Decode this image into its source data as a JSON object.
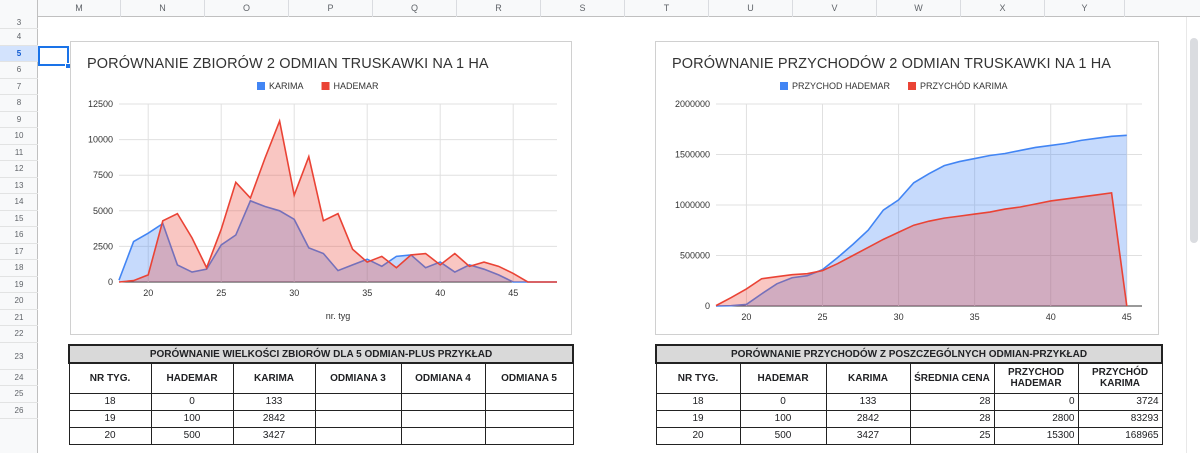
{
  "columns": [
    "M",
    "N",
    "O",
    "P",
    "Q",
    "R",
    "S",
    "T",
    "U",
    "V",
    "W",
    "X",
    "Y"
  ],
  "rows": [
    "3",
    "4",
    "5",
    "6",
    "7",
    "8",
    "9",
    "10",
    "11",
    "12",
    "13",
    "14",
    "15",
    "16",
    "17",
    "18",
    "19",
    "20",
    "21",
    "22",
    "23",
    "24",
    "25",
    "26"
  ],
  "selected_row": "5",
  "colors": {
    "karima": "#4285f4",
    "hademar": "#ea4335",
    "hademar_fill": "#f5b3ad",
    "karima_fill": "#aac5f7",
    "overlap": "#c9a0b7"
  },
  "chart_data": [
    {
      "type": "area",
      "title": "PORÓWNANIE ZBIORÓW 2 ODMIAN TRUSKAWKI NA 1 HA",
      "xlabel": "nr. tyg",
      "ylabel": "",
      "xlim": [
        18,
        48
      ],
      "ylim": [
        0,
        12500
      ],
      "x_ticks": [
        20,
        25,
        30,
        35,
        40,
        45
      ],
      "y_ticks": [
        0,
        2500,
        5000,
        7500,
        10000,
        12500
      ],
      "legend": "top",
      "grid": true,
      "x": [
        18,
        19,
        20,
        21,
        22,
        23,
        24,
        25,
        26,
        27,
        28,
        29,
        30,
        31,
        32,
        33,
        34,
        35,
        36,
        37,
        38,
        39,
        40,
        41,
        42,
        43,
        44,
        45,
        46,
        47,
        48
      ],
      "series": [
        {
          "name": "KARIMA",
          "values": [
            133,
            2842,
            3427,
            4100,
            1200,
            700,
            900,
            2600,
            3300,
            5700,
            5300,
            5000,
            4400,
            2400,
            2000,
            800,
            1200,
            1600,
            1100,
            1800,
            1900,
            1000,
            1400,
            700,
            1200,
            900,
            500,
            0,
            0,
            0,
            0
          ]
        },
        {
          "name": "HADEMAR",
          "values": [
            0,
            100,
            500,
            4300,
            4800,
            3100,
            1000,
            3700,
            7000,
            5900,
            8700,
            11300,
            6100,
            8800,
            4300,
            4800,
            2300,
            1400,
            1800,
            1000,
            1900,
            2000,
            1200,
            2000,
            1100,
            1400,
            1100,
            600,
            0,
            0,
            0
          ]
        }
      ]
    },
    {
      "type": "area",
      "title": "PORÓWNANIE PRZYCHODÓW 2 ODMIAN TRUSKAWKI NA 1 HA",
      "xlabel": "",
      "ylabel": "",
      "xlim": [
        18,
        46
      ],
      "ylim": [
        0,
        2000000
      ],
      "x_ticks": [
        20,
        25,
        30,
        35,
        40,
        45
      ],
      "y_ticks": [
        0,
        500000,
        1000000,
        1500000,
        2000000
      ],
      "legend": "top",
      "grid": true,
      "x": [
        18,
        19,
        20,
        21,
        22,
        23,
        24,
        25,
        26,
        27,
        28,
        29,
        30,
        31,
        32,
        33,
        34,
        35,
        36,
        37,
        38,
        39,
        40,
        41,
        42,
        43,
        44,
        45
      ],
      "series": [
        {
          "name": "PRZYCHOD HADEMAR",
          "values": [
            0,
            2800,
            15300,
            120000,
            220000,
            280000,
            300000,
            360000,
            480000,
            610000,
            750000,
            950000,
            1050000,
            1220000,
            1310000,
            1390000,
            1430000,
            1460000,
            1490000,
            1510000,
            1540000,
            1570000,
            1590000,
            1610000,
            1640000,
            1660000,
            1680000,
            1690000
          ]
        },
        {
          "name": "PRZYCHÓD KARIMA",
          "values": [
            3724,
            83293,
            168965,
            270000,
            290000,
            310000,
            320000,
            350000,
            420000,
            500000,
            580000,
            660000,
            730000,
            800000,
            840000,
            870000,
            890000,
            910000,
            930000,
            960000,
            980000,
            1010000,
            1040000,
            1060000,
            1080000,
            1100000,
            1120000,
            0
          ]
        }
      ]
    }
  ],
  "table1": {
    "title": "PORÓWNANIE WIELKOŚCI ZBIORÓW DLA 5 ODMIAN-PLUS PRZYKŁAD",
    "headers": [
      "NR TYG.",
      "HADEMAR",
      "KARIMA",
      "ODMIANA 3",
      "ODMIANA 4",
      "ODMIANA 5"
    ],
    "rows": [
      [
        "18",
        "0",
        "133",
        "",
        "",
        ""
      ],
      [
        "19",
        "100",
        "2842",
        "",
        "",
        ""
      ],
      [
        "20",
        "500",
        "3427",
        "",
        "",
        ""
      ]
    ]
  },
  "table2": {
    "title": "PORÓWNANIE PRZYCHODÓW Z POSZCZEGÓLNYCH ODMIAN-PRZYKŁAD",
    "headers": [
      "NR TYG.",
      "HADEMAR",
      "KARIMA",
      "ŚREDNIA CENA",
      "PRZYCHOD HADEMAR",
      "PRZYCHÓD KARIMA"
    ],
    "rows": [
      [
        "18",
        "0",
        "133",
        "28",
        "0",
        "3724"
      ],
      [
        "19",
        "100",
        "2842",
        "28",
        "2800",
        "83293"
      ],
      [
        "20",
        "500",
        "3427",
        "25",
        "15300",
        "168965"
      ]
    ]
  }
}
